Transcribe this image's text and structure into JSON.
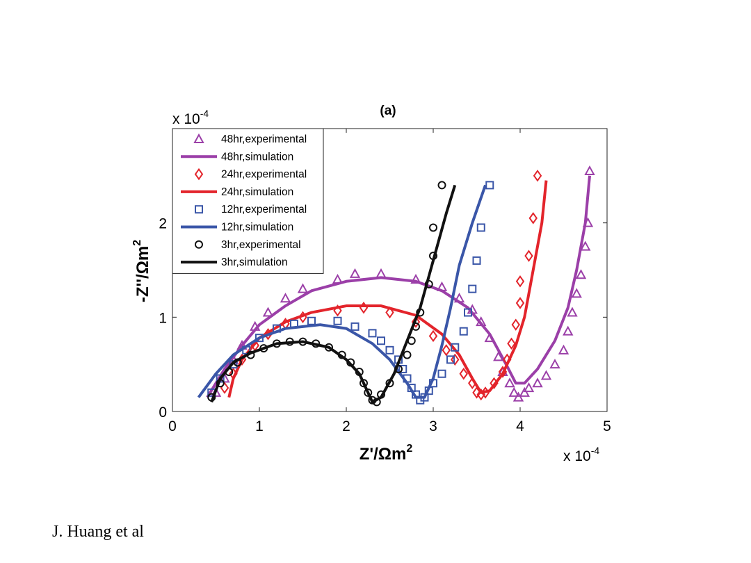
{
  "chart_data": {
    "type": "scatter",
    "title": "(a)",
    "xlabel": {
      "text": "Z'/Ωm",
      "sup": "2"
    },
    "ylabel": {
      "text": "-Z''/Ωm",
      "sup": "2"
    },
    "xoffset": {
      "text": "x 10",
      "sup": "-4"
    },
    "yoffset": {
      "text": "x 10",
      "sup": "-4"
    },
    "xlim": [
      0,
      5
    ],
    "ylim": [
      0,
      3
    ],
    "xticks": [
      0,
      1,
      2,
      3,
      4,
      5
    ],
    "yticks": [
      0,
      1,
      2
    ],
    "legend": "upper left",
    "series": [
      {
        "name": "48hr,experimental",
        "color": "#9b3fa8",
        "mode": "markers",
        "marker": "triangle",
        "x": [
          0.5,
          0.6,
          0.7,
          0.8,
          0.95,
          1.1,
          1.3,
          1.5,
          1.9,
          2.1,
          2.4,
          2.8,
          3.1,
          3.3,
          3.45,
          3.55,
          3.65,
          3.75,
          3.8,
          3.88,
          3.93,
          3.98,
          4.05,
          4.1,
          4.2,
          4.3,
          4.4,
          4.5,
          4.55,
          4.6,
          4.65,
          4.7,
          4.75,
          4.78,
          4.8
        ],
        "values": [
          0.2,
          0.35,
          0.55,
          0.7,
          0.9,
          1.05,
          1.2,
          1.3,
          1.4,
          1.46,
          1.46,
          1.4,
          1.32,
          1.2,
          1.08,
          0.95,
          0.78,
          0.58,
          0.42,
          0.3,
          0.2,
          0.15,
          0.2,
          0.25,
          0.3,
          0.38,
          0.5,
          0.65,
          0.85,
          1.05,
          1.25,
          1.45,
          1.75,
          2.0,
          2.55
        ]
      },
      {
        "name": "48hr,simulation",
        "color": "#9b3fa8",
        "mode": "line",
        "x": [
          0.4,
          0.6,
          0.8,
          1.0,
          1.3,
          1.6,
          2.0,
          2.4,
          2.8,
          3.1,
          3.4,
          3.65,
          3.85,
          3.95,
          4.05,
          4.2,
          4.4,
          4.55,
          4.65,
          4.75,
          4.8
        ],
        "values": [
          0.15,
          0.45,
          0.7,
          0.92,
          1.12,
          1.28,
          1.38,
          1.42,
          1.38,
          1.28,
          1.1,
          0.82,
          0.48,
          0.3,
          0.3,
          0.45,
          0.75,
          1.1,
          1.5,
          2.0,
          2.5
        ]
      },
      {
        "name": "24hr,experimental",
        "color": "#e3242b",
        "mode": "markers",
        "marker": "diamond",
        "x": [
          0.6,
          0.7,
          0.8,
          0.95,
          1.1,
          1.3,
          1.5,
          1.9,
          2.2,
          2.5,
          2.8,
          3.0,
          3.15,
          3.25,
          3.35,
          3.45,
          3.5,
          3.55,
          3.6,
          3.7,
          3.8,
          3.85,
          3.9,
          3.95,
          4.0,
          4.0,
          4.1,
          4.15,
          4.2
        ],
        "values": [
          0.25,
          0.4,
          0.55,
          0.7,
          0.82,
          0.93,
          1.0,
          1.07,
          1.1,
          1.05,
          0.95,
          0.8,
          0.65,
          0.55,
          0.4,
          0.3,
          0.2,
          0.18,
          0.2,
          0.3,
          0.42,
          0.55,
          0.72,
          0.92,
          1.15,
          1.38,
          1.65,
          2.05,
          2.5
        ]
      },
      {
        "name": "24hr,simulation",
        "color": "#e3242b",
        "mode": "line",
        "x": [
          0.65,
          0.7,
          0.8,
          1.0,
          1.3,
          1.6,
          2.0,
          2.4,
          2.8,
          3.1,
          3.3,
          3.45,
          3.55,
          3.65,
          3.8,
          3.95,
          4.05,
          4.15,
          4.25,
          4.3
        ],
        "values": [
          0.15,
          0.35,
          0.55,
          0.78,
          0.95,
          1.05,
          1.12,
          1.12,
          1.02,
          0.82,
          0.6,
          0.35,
          0.2,
          0.22,
          0.4,
          0.7,
          1.0,
          1.5,
          2.0,
          2.45
        ]
      },
      {
        "name": "12hr,experimental",
        "color": "#3a56a8",
        "mode": "markers",
        "marker": "square",
        "x": [
          0.45,
          0.55,
          0.7,
          0.85,
          1.0,
          1.2,
          1.4,
          1.6,
          1.9,
          2.1,
          2.3,
          2.4,
          2.5,
          2.6,
          2.65,
          2.7,
          2.75,
          2.8,
          2.85,
          2.9,
          2.95,
          3.0,
          3.1,
          3.2,
          3.25,
          3.35,
          3.4,
          3.45,
          3.5,
          3.55,
          3.65
        ],
        "values": [
          0.2,
          0.35,
          0.5,
          0.65,
          0.78,
          0.88,
          0.93,
          0.96,
          0.96,
          0.9,
          0.83,
          0.75,
          0.65,
          0.55,
          0.45,
          0.35,
          0.25,
          0.18,
          0.12,
          0.15,
          0.22,
          0.3,
          0.4,
          0.55,
          0.68,
          0.85,
          1.05,
          1.3,
          1.6,
          1.95,
          2.4
        ]
      },
      {
        "name": "12hr,simulation",
        "color": "#3a56a8",
        "mode": "line",
        "x": [
          0.3,
          0.5,
          0.7,
          1.0,
          1.3,
          1.7,
          2.0,
          2.3,
          2.5,
          2.7,
          2.8,
          2.9,
          3.0,
          3.1,
          3.2,
          3.3,
          3.45,
          3.6
        ],
        "values": [
          0.15,
          0.4,
          0.6,
          0.78,
          0.88,
          0.92,
          0.88,
          0.72,
          0.55,
          0.3,
          0.15,
          0.15,
          0.35,
          0.7,
          1.1,
          1.55,
          2.0,
          2.4
        ]
      },
      {
        "name": "3hr,experimental",
        "color": "#111111",
        "mode": "markers",
        "marker": "circle",
        "x": [
          0.45,
          0.55,
          0.65,
          0.75,
          0.9,
          1.05,
          1.2,
          1.35,
          1.5,
          1.65,
          1.8,
          1.95,
          2.05,
          2.15,
          2.2,
          2.25,
          2.3,
          2.35,
          2.4,
          2.5,
          2.6,
          2.7,
          2.75,
          2.8,
          2.85,
          2.95,
          3.0,
          3.0,
          3.1
        ],
        "values": [
          0.15,
          0.3,
          0.42,
          0.52,
          0.6,
          0.67,
          0.72,
          0.74,
          0.74,
          0.72,
          0.68,
          0.6,
          0.52,
          0.42,
          0.3,
          0.2,
          0.12,
          0.1,
          0.18,
          0.3,
          0.45,
          0.6,
          0.75,
          0.9,
          1.05,
          1.35,
          1.65,
          1.95,
          2.4
        ]
      },
      {
        "name": "3hr,simulation",
        "color": "#111111",
        "mode": "line",
        "x": [
          0.45,
          0.55,
          0.7,
          0.9,
          1.2,
          1.5,
          1.8,
          2.0,
          2.15,
          2.25,
          2.3,
          2.4,
          2.55,
          2.7,
          2.85,
          3.0,
          3.15,
          3.25
        ],
        "values": [
          0.1,
          0.35,
          0.52,
          0.62,
          0.72,
          0.74,
          0.68,
          0.55,
          0.4,
          0.2,
          0.1,
          0.15,
          0.4,
          0.75,
          1.1,
          1.6,
          2.1,
          2.4
        ]
      }
    ]
  },
  "footer": "J. Huang et al"
}
